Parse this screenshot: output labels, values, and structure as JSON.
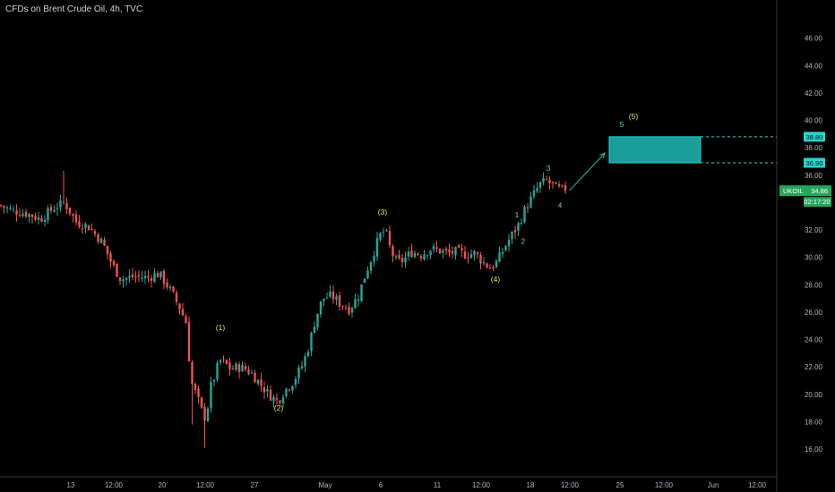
{
  "header": {
    "title": "CFDs on Brent Crude Oil, 4h, TVC"
  },
  "colors": {
    "background": "#000000",
    "bull": "#26a69a",
    "bear": "#ef5350",
    "wave_major": "#f0e442",
    "wave_minor": "#5fd3c6",
    "zone_fill": "#1a9e9c",
    "zone_border": "#26d6d0",
    "price_tag": "#26a65b",
    "axis_text": "#b2b5be",
    "axis_line": "#363a45",
    "arrow": "#26a69a"
  },
  "chart_data": {
    "type": "candlestick",
    "title": "CFDs on Brent Crude Oil, 4h, TVC",
    "symbol": "UKOIL",
    "last_price": "34.86",
    "countdown": "02:17:20",
    "ylim": [
      14.5,
      48
    ],
    "y_ticks": [
      "46.00",
      "44.00",
      "42.00",
      "40.00",
      "38.00",
      "36.00",
      "34.00",
      "32.00",
      "30.00",
      "28.00",
      "26.00",
      "24.00",
      "22.00",
      "20.00",
      "18.00",
      "16.00"
    ],
    "x_ticks": [
      "13",
      "12:00",
      "20",
      "12:00",
      "27",
      "May",
      "6",
      "11",
      "12:00",
      "18",
      "12:00",
      "25",
      "12:00",
      "Jun",
      "12:00"
    ],
    "grid": false,
    "price_path": [
      [
        0,
        33.8
      ],
      [
        14,
        33.4
      ],
      [
        30,
        33.2
      ],
      [
        45,
        32.8
      ],
      [
        60,
        33.6
      ],
      [
        72,
        34.0
      ],
      [
        85,
        32.6
      ],
      [
        100,
        32.2
      ],
      [
        115,
        31.0
      ],
      [
        125,
        29.5
      ],
      [
        135,
        28.4
      ],
      [
        150,
        28.6
      ],
      [
        165,
        28.5
      ],
      [
        175,
        28.8
      ],
      [
        180,
        28.6
      ],
      [
        190,
        27.6
      ],
      [
        200,
        26.4
      ],
      [
        208,
        25.2
      ],
      [
        213,
        21.0
      ],
      [
        220,
        19.8
      ],
      [
        226,
        18.6
      ],
      [
        230,
        18.2
      ],
      [
        235,
        20.5
      ],
      [
        240,
        21.4
      ],
      [
        245,
        22.5
      ],
      [
        252,
        22.2
      ],
      [
        258,
        21.8
      ],
      [
        265,
        22.0
      ],
      [
        272,
        21.9
      ],
      [
        280,
        21.6
      ],
      [
        290,
        20.8
      ],
      [
        300,
        20.0
      ],
      [
        310,
        19.5
      ],
      [
        318,
        20.3
      ],
      [
        328,
        21.0
      ],
      [
        338,
        22.2
      ],
      [
        345,
        23.6
      ],
      [
        352,
        25.5
      ],
      [
        360,
        27.0
      ],
      [
        370,
        27.2
      ],
      [
        380,
        26.6
      ],
      [
        390,
        26.2
      ],
      [
        400,
        27.2
      ],
      [
        408,
        28.8
      ],
      [
        416,
        30.2
      ],
      [
        424,
        31.6
      ],
      [
        430,
        32.0
      ],
      [
        436,
        30.5
      ],
      [
        443,
        29.6
      ],
      [
        450,
        29.8
      ],
      [
        460,
        30.4
      ],
      [
        470,
        30.2
      ],
      [
        480,
        30.6
      ],
      [
        490,
        30.5
      ],
      [
        500,
        30.3
      ],
      [
        510,
        30.4
      ],
      [
        520,
        30.2
      ],
      [
        530,
        30.3
      ],
      [
        540,
        29.6
      ],
      [
        548,
        29.2
      ],
      [
        556,
        29.8
      ],
      [
        562,
        30.6
      ],
      [
        570,
        31.5
      ],
      [
        578,
        32.3
      ],
      [
        586,
        33.5
      ],
      [
        594,
        34.4
      ],
      [
        602,
        35.3
      ],
      [
        610,
        35.6
      ],
      [
        618,
        35.2
      ],
      [
        626,
        34.9
      ],
      [
        632,
        34.86
      ]
    ],
    "wave_labels": [
      {
        "text": "(1)",
        "x": 246,
        "y": 24.7,
        "kind": "major"
      },
      {
        "text": "(2)",
        "x": 311,
        "y": 18.8,
        "kind": "major"
      },
      {
        "text": "(3)",
        "x": 427,
        "y": 33.1,
        "kind": "major"
      },
      {
        "text": "(4)",
        "x": 553,
        "y": 28.2,
        "kind": "major"
      },
      {
        "text": "(5)",
        "x": 707,
        "y": 40.1,
        "kind": "major"
      },
      {
        "text": "1",
        "x": 577,
        "y": 32.9,
        "kind": "minor"
      },
      {
        "text": "2",
        "x": 584,
        "y": 31.0,
        "kind": "minor"
      },
      {
        "text": "3",
        "x": 612,
        "y": 36.3,
        "kind": "minor"
      },
      {
        "text": "4",
        "x": 625,
        "y": 33.6,
        "kind": "minor"
      },
      {
        "text": "5",
        "x": 694,
        "y": 39.5,
        "kind": "minor"
      }
    ],
    "target_zone": {
      "low": 36.9,
      "high": 38.8,
      "low_label": "36.90",
      "high_label": "38.80"
    }
  }
}
